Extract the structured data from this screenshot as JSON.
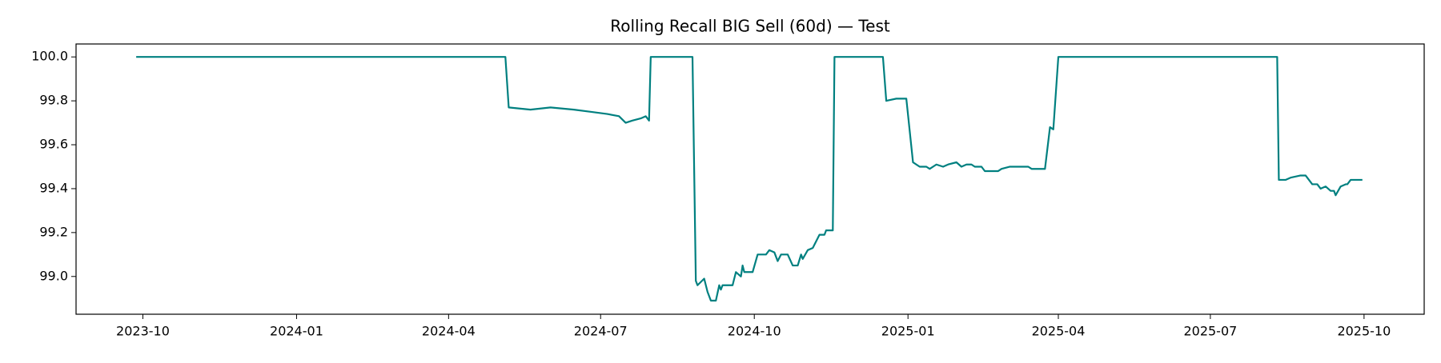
{
  "chart_data": {
    "type": "line",
    "title": "Rolling Recall BIG Sell (60d) — Test",
    "color": "#008080",
    "x": [
      "2023-09-27",
      "2024-05-05",
      "2024-05-07",
      "2024-05-20",
      "2024-06-01",
      "2024-06-15",
      "2024-06-25",
      "2024-07-05",
      "2024-07-12",
      "2024-07-16",
      "2024-07-20",
      "2024-07-25",
      "2024-07-28",
      "2024-07-30",
      "2024-07-31",
      "2024-08-25",
      "2024-08-27",
      "2024-08-28",
      "2024-09-01",
      "2024-09-03",
      "2024-09-05",
      "2024-09-08",
      "2024-09-10",
      "2024-09-11",
      "2024-09-12",
      "2024-09-18",
      "2024-09-20",
      "2024-09-23",
      "2024-09-24",
      "2024-09-25",
      "2024-09-30",
      "2024-10-03",
      "2024-10-08",
      "2024-10-10",
      "2024-10-13",
      "2024-10-15",
      "2024-10-17",
      "2024-10-21",
      "2024-10-24",
      "2024-10-27",
      "2024-10-29",
      "2024-10-30",
      "2024-11-02",
      "2024-11-05",
      "2024-11-07",
      "2024-11-09",
      "2024-11-12",
      "2024-11-13",
      "2024-11-17",
      "2024-11-18",
      "2024-12-17",
      "2024-12-19",
      "2024-12-25",
      "2024-12-31",
      "2025-01-04",
      "2025-01-08",
      "2025-01-12",
      "2025-01-14",
      "2025-01-18",
      "2025-01-22",
      "2025-01-25",
      "2025-01-30",
      "2025-02-02",
      "2025-02-05",
      "2025-02-08",
      "2025-02-10",
      "2025-02-14",
      "2025-02-16",
      "2025-02-24",
      "2025-02-26",
      "2025-03-03",
      "2025-03-14",
      "2025-03-16",
      "2025-03-24",
      "2025-03-27",
      "2025-03-29",
      "2025-04-01",
      "2025-08-10",
      "2025-08-11",
      "2025-08-15",
      "2025-08-18",
      "2025-08-24",
      "2025-08-27",
      "2025-08-31",
      "2025-09-03",
      "2025-09-05",
      "2025-09-08",
      "2025-09-11",
      "2025-09-13",
      "2025-09-14",
      "2025-09-17",
      "2025-09-20",
      "2025-09-21",
      "2025-09-23",
      "2025-09-30"
    ],
    "values": [
      100.0,
      100.0,
      99.77,
      99.76,
      99.77,
      99.76,
      99.75,
      99.74,
      99.73,
      99.7,
      99.71,
      99.72,
      99.73,
      99.71,
      100.0,
      100.0,
      98.98,
      98.96,
      98.99,
      98.93,
      98.89,
      98.89,
      98.96,
      98.94,
      98.96,
      98.96,
      99.02,
      99.0,
      99.05,
      99.02,
      99.02,
      99.1,
      99.1,
      99.12,
      99.11,
      99.07,
      99.1,
      99.1,
      99.05,
      99.05,
      99.1,
      99.08,
      99.12,
      99.13,
      99.16,
      99.19,
      99.19,
      99.21,
      99.21,
      100.0,
      100.0,
      99.8,
      99.81,
      99.81,
      99.52,
      99.5,
      99.5,
      99.49,
      99.51,
      99.5,
      99.51,
      99.52,
      99.5,
      99.51,
      99.51,
      99.5,
      99.5,
      99.48,
      99.48,
      99.49,
      99.5,
      99.5,
      99.49,
      99.49,
      99.68,
      99.67,
      100.0,
      100.0,
      99.44,
      99.44,
      99.45,
      99.46,
      99.46,
      99.42,
      99.42,
      99.4,
      99.41,
      99.39,
      99.39,
      99.37,
      99.41,
      99.42,
      99.42,
      99.44,
      99.44
    ],
    "xlim": [
      "2023-08-22",
      "2025-11-06"
    ],
    "xticks": [
      {
        "value": "2023-10-01",
        "label": "2023-10"
      },
      {
        "value": "2024-01-01",
        "label": "2024-01"
      },
      {
        "value": "2024-04-01",
        "label": "2024-04"
      },
      {
        "value": "2024-07-01",
        "label": "2024-07"
      },
      {
        "value": "2024-10-01",
        "label": "2024-10"
      },
      {
        "value": "2025-01-01",
        "label": "2025-01"
      },
      {
        "value": "2025-04-01",
        "label": "2025-04"
      },
      {
        "value": "2025-07-01",
        "label": "2025-07"
      },
      {
        "value": "2025-10-01",
        "label": "2025-10"
      }
    ],
    "ylim": [
      98.828,
      100.059
    ],
    "yticks": [
      {
        "value": 99.0,
        "label": "99.0"
      },
      {
        "value": 99.2,
        "label": "99.2"
      },
      {
        "value": 99.4,
        "label": "99.4"
      },
      {
        "value": 99.6,
        "label": "99.6"
      },
      {
        "value": 99.8,
        "label": "99.8"
      },
      {
        "value": 100.0,
        "label": "100.0"
      }
    ],
    "grid": false
  }
}
